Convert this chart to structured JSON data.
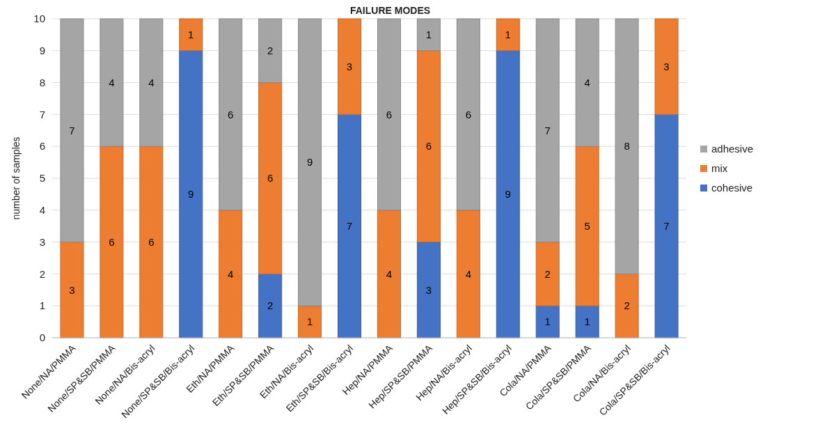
{
  "chart_data": {
    "type": "bar",
    "title": "FAILURE MODES",
    "ylabel": "number of samples",
    "stacked": true,
    "grid": "y",
    "legend": "right",
    "categories": [
      "None/NA/PMMA",
      "None/SP&SB/PMMA",
      "None/NA/Bis-acryl",
      "None/SP&SB/Bis-acryl",
      "Eth/NA/PMMA",
      "Eth/SP&SB/PMMA",
      "Eth/NA/Bis-acryl",
      "Eth/SP&SB/Bis-acryl",
      "Hep/NA/PMMA",
      "Hep/SP&SB/PMMA",
      "Hep/NA/Bis-acryl",
      "Hep/SP&SB/Bis-acryl",
      "Cola/NA/PMMA",
      "Cola/SP&SB/PMMA",
      "Cola/NA/Bis-acryl",
      "Cola/SP&SB/Bis-acryl"
    ],
    "ylim": [
      0,
      10
    ],
    "yticks": [
      0,
      1,
      2,
      3,
      4,
      5,
      6,
      7,
      8,
      9,
      10
    ],
    "series": [
      {
        "name": "cohesive",
        "color": "#4472c4",
        "values": [
          0,
          0,
          0,
          9,
          0,
          2,
          0,
          7,
          0,
          3,
          0,
          9,
          1,
          1,
          0,
          7
        ],
        "value_labels": [
          null,
          null,
          null,
          "9",
          null,
          "2",
          null,
          "7",
          null,
          "3",
          null,
          "9",
          "1",
          "1",
          null,
          "7"
        ]
      },
      {
        "name": "mix",
        "color": "#ed7d31",
        "values": [
          3,
          6,
          6,
          1,
          4,
          6,
          1,
          3,
          4,
          6,
          4,
          1,
          2,
          5,
          2,
          3
        ],
        "value_labels": [
          "3",
          "6",
          "6",
          "1",
          "4",
          "6",
          "1",
          "3",
          "4",
          "6",
          "4",
          "1",
          "2",
          "5",
          "2",
          "3"
        ]
      },
      {
        "name": "adhesive",
        "color": "#a5a5a5",
        "values": [
          7,
          4,
          4,
          0,
          6,
          2,
          9,
          0,
          6,
          1,
          6,
          0,
          7,
          4,
          8,
          0
        ],
        "value_labels": [
          "7",
          "4",
          "4",
          null,
          "6",
          "2",
          "9",
          null,
          "6",
          "1",
          "6",
          null,
          "7",
          "4",
          "8",
          null
        ]
      }
    ]
  }
}
